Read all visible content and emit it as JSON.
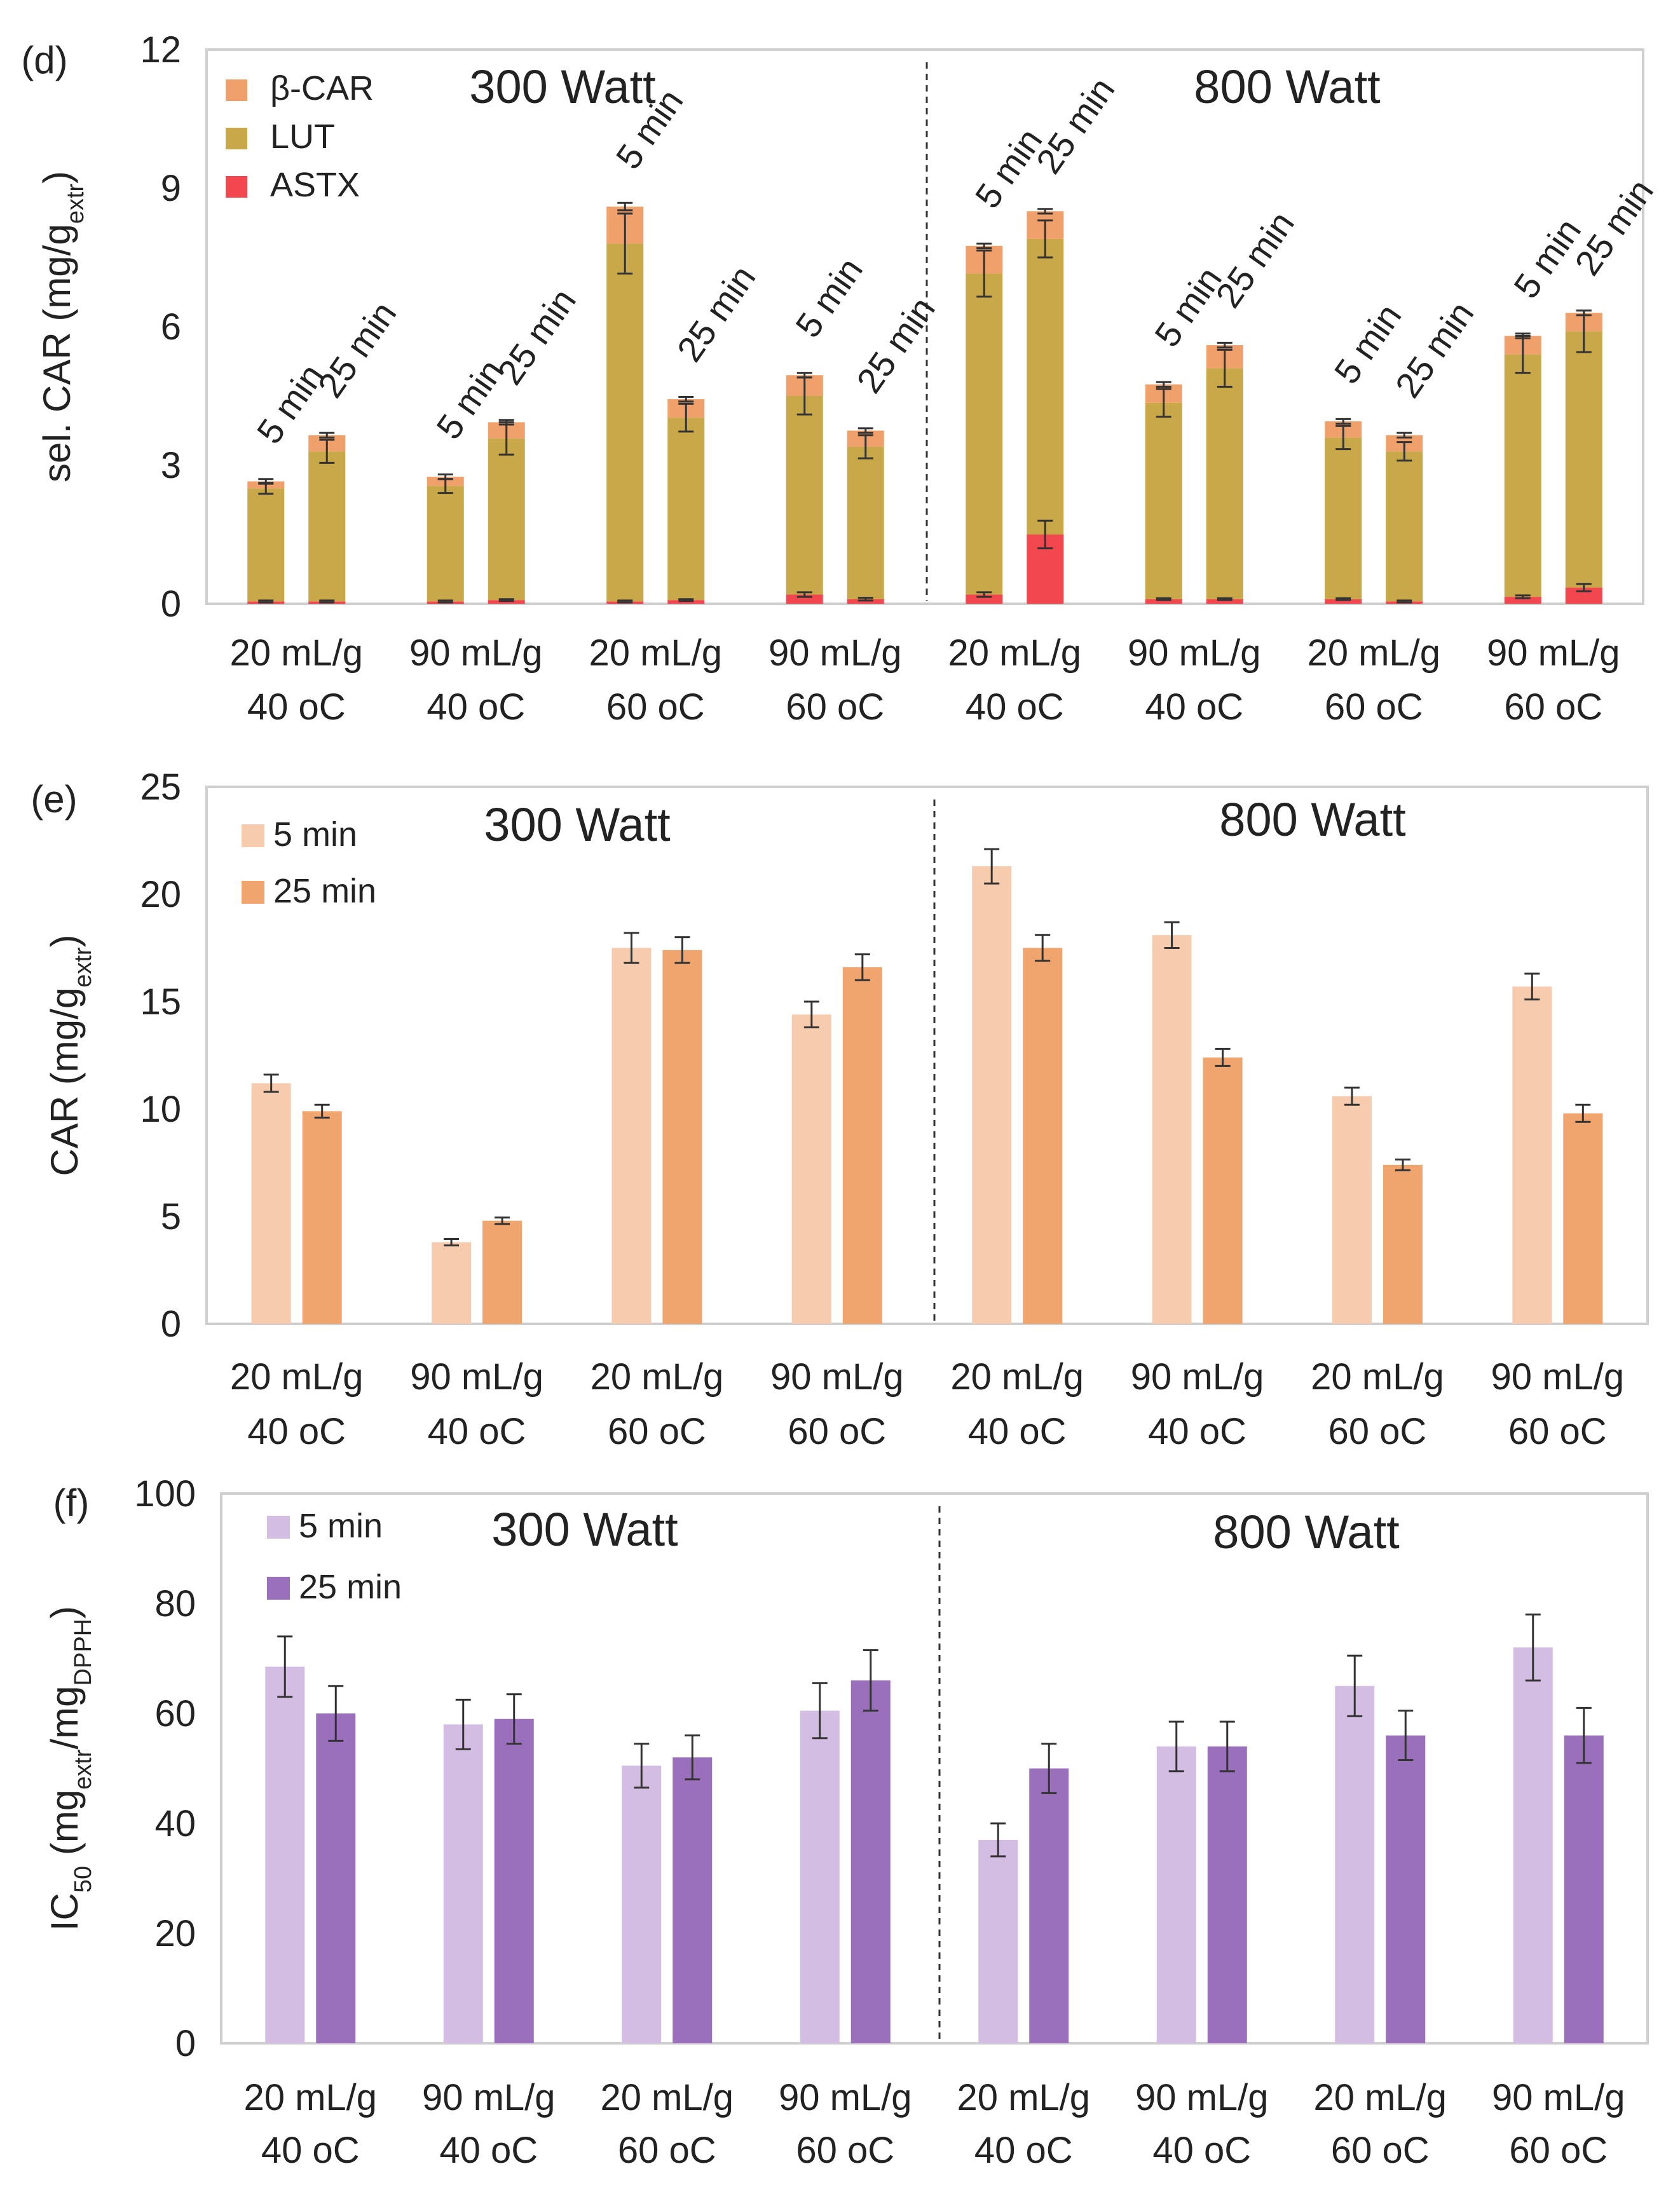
{
  "chart_data": [
    {
      "panel": "(d)",
      "type": "bar",
      "stacked": true,
      "ylabel_main": "sel. CAR (mg/g",
      "ylabel_sub": "extr",
      "ylabel_end": ")",
      "ylim": [
        0,
        12
      ],
      "yticks": [
        "0",
        "3",
        "6",
        "9",
        "12"
      ],
      "group_titles": [
        "300 Watt",
        "800 Watt"
      ],
      "groups": [
        {
          "line1": "20 mL/g",
          "line2": "40 oC"
        },
        {
          "line1": "90 mL/g",
          "line2": "40 oC"
        },
        {
          "line1": "20 mL/g",
          "line2": "60 oC"
        },
        {
          "line1": "90 mL/g",
          "line2": "60 oC"
        },
        {
          "line1": "20 mL/g",
          "line2": "40 oC"
        },
        {
          "line1": "90 mL/g",
          "line2": "40 oC"
        },
        {
          "line1": "20 mL/g",
          "line2": "60 oC"
        },
        {
          "line1": "90 mL/g",
          "line2": "60 oC"
        }
      ],
      "bar_labels": [
        "5 min",
        "25 min"
      ],
      "series": [
        {
          "name": "ASTX",
          "color": "#f2474e"
        },
        {
          "name": "LUT",
          "color": "#c9a84a"
        },
        {
          "name": "β-CAR",
          "color": "#f0a06a"
        }
      ],
      "bars": [
        {
          "astx": 0.05,
          "astx_err": 0.02,
          "lut": 2.45,
          "lut_err": 0.12,
          "bcar": 0.15,
          "bcar_err": 0.05
        },
        {
          "astx": 0.05,
          "astx_err": 0.02,
          "lut": 3.25,
          "lut_err": 0.25,
          "bcar": 0.35,
          "bcar_err": 0.05
        },
        {
          "astx": 0.05,
          "astx_err": 0.02,
          "lut": 2.5,
          "lut_err": 0.15,
          "bcar": 0.2,
          "bcar_err": 0.05
        },
        {
          "astx": 0.08,
          "astx_err": 0.02,
          "lut": 3.5,
          "lut_err": 0.35,
          "bcar": 0.35,
          "bcar_err": 0.05
        },
        {
          "astx": 0.05,
          "astx_err": 0.02,
          "lut": 7.75,
          "lut_err": 0.65,
          "bcar": 0.8,
          "bcar_err": 0.08
        },
        {
          "astx": 0.08,
          "astx_err": 0.02,
          "lut": 3.95,
          "lut_err": 0.3,
          "bcar": 0.4,
          "bcar_err": 0.05
        },
        {
          "astx": 0.2,
          "astx_err": 0.05,
          "lut": 4.3,
          "lut_err": 0.4,
          "bcar": 0.45,
          "bcar_err": 0.05
        },
        {
          "astx": 0.1,
          "astx_err": 0.03,
          "lut": 3.3,
          "lut_err": 0.25,
          "bcar": 0.35,
          "bcar_err": 0.05
        },
        {
          "astx": 0.2,
          "astx_err": 0.05,
          "lut": 6.95,
          "lut_err": 0.5,
          "bcar": 0.6,
          "bcar_err": 0.05
        },
        {
          "astx": 1.5,
          "astx_err": 0.3,
          "lut": 6.4,
          "lut_err": 0.4,
          "bcar": 0.6,
          "bcar_err": 0.05
        },
        {
          "astx": 0.1,
          "astx_err": 0.02,
          "lut": 4.25,
          "lut_err": 0.3,
          "bcar": 0.4,
          "bcar_err": 0.05
        },
        {
          "astx": 0.1,
          "astx_err": 0.02,
          "lut": 5.0,
          "lut_err": 0.4,
          "bcar": 0.5,
          "bcar_err": 0.05
        },
        {
          "astx": 0.1,
          "astx_err": 0.02,
          "lut": 3.5,
          "lut_err": 0.25,
          "bcar": 0.35,
          "bcar_err": 0.05
        },
        {
          "astx": 0.05,
          "astx_err": 0.02,
          "lut": 3.25,
          "lut_err": 0.2,
          "bcar": 0.35,
          "bcar_err": 0.05
        },
        {
          "astx": 0.15,
          "astx_err": 0.03,
          "lut": 5.25,
          "lut_err": 0.4,
          "bcar": 0.4,
          "bcar_err": 0.05
        },
        {
          "astx": 0.35,
          "astx_err": 0.08,
          "lut": 5.55,
          "lut_err": 0.45,
          "bcar": 0.4,
          "bcar_err": 0.05
        }
      ]
    },
    {
      "panel": "(e)",
      "type": "bar",
      "ylabel_main": "CAR (mg/g",
      "ylabel_sub": "extr",
      "ylabel_end": ")",
      "ylim": [
        0,
        25
      ],
      "yticks": [
        "0",
        "5",
        "10",
        "15",
        "20",
        "25"
      ],
      "group_titles": [
        "300 Watt",
        "800 Watt"
      ],
      "categories": [
        {
          "line1": "20 mL/g",
          "line2": "40 oC"
        },
        {
          "line1": "90 mL/g",
          "line2": "40 oC"
        },
        {
          "line1": "20 mL/g",
          "line2": "60 oC"
        },
        {
          "line1": "90 mL/g",
          "line2": "60 oC"
        },
        {
          "line1": "20 mL/g",
          "line2": "40 oC"
        },
        {
          "line1": "90 mL/g",
          "line2": "40 oC"
        },
        {
          "line1": "20 mL/g",
          "line2": "60 oC"
        },
        {
          "line1": "90 mL/g",
          "line2": "60 oC"
        }
      ],
      "series": [
        {
          "name": "5 min",
          "color": "#f7cbad",
          "values": [
            11.2,
            3.8,
            17.5,
            14.4,
            21.3,
            18.1,
            10.6,
            15.7
          ],
          "errors": [
            0.4,
            0.15,
            0.7,
            0.6,
            0.8,
            0.6,
            0.4,
            0.6
          ]
        },
        {
          "name": "25 min",
          "color": "#f0a46e",
          "values": [
            9.9,
            4.8,
            17.4,
            16.6,
            17.5,
            12.4,
            7.4,
            9.8
          ],
          "errors": [
            0.3,
            0.15,
            0.6,
            0.6,
            0.6,
            0.4,
            0.25,
            0.4
          ]
        }
      ]
    },
    {
      "panel": "(f)",
      "type": "bar",
      "ylabel_main": "IC",
      "ylabel_sub1": "50",
      "ylabel_mid1": " (mg",
      "ylabel_sub2": "extr",
      "ylabel_mid2": "/mg",
      "ylabel_sub3": "DPPH",
      "ylabel_end": ")",
      "ylim": [
        0,
        100
      ],
      "yticks": [
        "0",
        "20",
        "40",
        "60",
        "80",
        "100"
      ],
      "group_titles": [
        "300 Watt",
        "800 Watt"
      ],
      "categories": [
        {
          "line1": "20 mL/g",
          "line2": "40 oC"
        },
        {
          "line1": "90 mL/g",
          "line2": "40 oC"
        },
        {
          "line1": "20 mL/g",
          "line2": "60 oC"
        },
        {
          "line1": "90 mL/g",
          "line2": "60 oC"
        },
        {
          "line1": "20 mL/g",
          "line2": "40 oC"
        },
        {
          "line1": "90 mL/g",
          "line2": "40 oC"
        },
        {
          "line1": "20 mL/g",
          "line2": "60 oC"
        },
        {
          "line1": "90 mL/g",
          "line2": "60 oC"
        }
      ],
      "series": [
        {
          "name": "5 min",
          "color": "#d4bde3",
          "values": [
            68.5,
            58,
            50.5,
            60.5,
            37,
            54,
            65,
            72
          ],
          "errors": [
            5.5,
            4.5,
            4,
            5,
            3,
            4.5,
            5.5,
            6
          ]
        },
        {
          "name": "25 min",
          "color": "#9a6fbc",
          "values": [
            60,
            59,
            52,
            66,
            50,
            54,
            56,
            56
          ],
          "errors": [
            5,
            4.5,
            4,
            5.5,
            4.5,
            4.5,
            4.5,
            5
          ]
        }
      ]
    }
  ]
}
